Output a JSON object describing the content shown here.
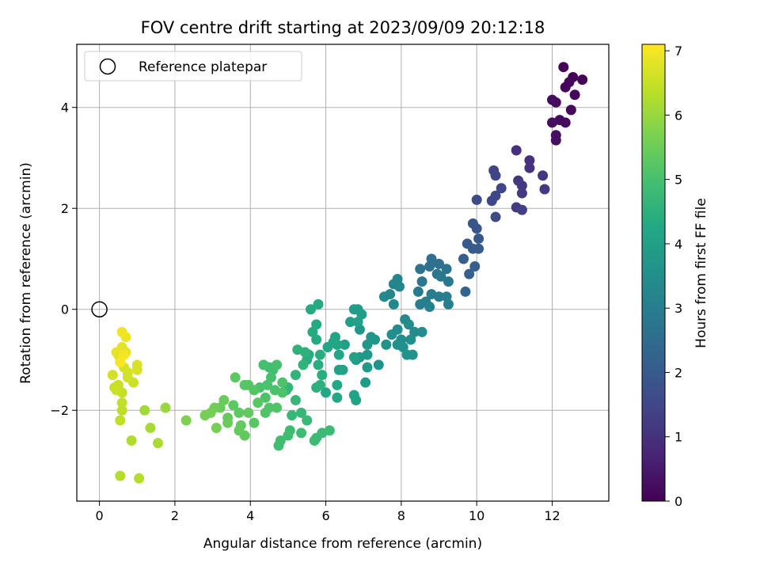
{
  "chart_data": {
    "type": "scatter",
    "title": "FOV centre drift starting at 2023/09/09 20:12:18",
    "xlabel": "Angular distance from reference (arcmin)",
    "ylabel": "Rotation from reference (arcmin)",
    "xlim": [
      -0.6,
      13.5
    ],
    "ylim": [
      -3.8,
      5.25
    ],
    "xticks": [
      0,
      2,
      4,
      6,
      8,
      10,
      12
    ],
    "yticks": [
      -2,
      0,
      2,
      4
    ],
    "grid": true,
    "legend": {
      "position": "top-left",
      "entries": [
        "Reference platepar"
      ]
    },
    "reference_point": {
      "x": 0,
      "y": 0
    },
    "colorbar": {
      "label": "Hours from first FF file",
      "range": [
        0,
        7.1
      ],
      "ticks": [
        0,
        1,
        2,
        3,
        4,
        5,
        6,
        7
      ],
      "colormap": "viridis"
    },
    "points": [
      [
        12.3,
        4.8,
        0.05
      ],
      [
        12.55,
        4.6,
        0.05
      ],
      [
        12.8,
        4.55,
        0.05
      ],
      [
        12.45,
        4.5,
        0.1
      ],
      [
        12.35,
        4.4,
        0.1
      ],
      [
        12.6,
        4.25,
        0.12
      ],
      [
        12.5,
        3.95,
        0.15
      ],
      [
        12.2,
        3.75,
        0.2
      ],
      [
        12.35,
        3.7,
        0.2
      ],
      [
        12.0,
        4.15,
        0.2
      ],
      [
        12.1,
        4.1,
        0.22
      ],
      [
        12.0,
        3.7,
        0.25
      ],
      [
        12.1,
        3.45,
        0.3
      ],
      [
        12.1,
        3.35,
        0.3
      ],
      [
        11.05,
        3.15,
        1.0
      ],
      [
        11.4,
        2.95,
        1.0
      ],
      [
        11.4,
        2.8,
        1.05
      ],
      [
        11.75,
        2.65,
        1.1
      ],
      [
        11.1,
        2.55,
        1.1
      ],
      [
        11.2,
        2.45,
        1.15
      ],
      [
        11.2,
        2.3,
        1.2
      ],
      [
        11.8,
        2.38,
        1.2
      ],
      [
        11.05,
        2.02,
        1.25
      ],
      [
        11.2,
        1.97,
        1.3
      ],
      [
        10.45,
        2.75,
        1.4
      ],
      [
        10.5,
        2.65,
        1.45
      ],
      [
        10.5,
        2.25,
        1.5
      ],
      [
        10.4,
        2.15,
        1.5
      ],
      [
        10.65,
        2.4,
        1.5
      ],
      [
        10.0,
        2.17,
        1.6
      ],
      [
        10.5,
        1.83,
        1.6
      ],
      [
        9.9,
        1.7,
        1.9
      ],
      [
        10.0,
        1.6,
        1.9
      ],
      [
        10.05,
        1.4,
        1.95
      ],
      [
        9.75,
        1.3,
        2.0
      ],
      [
        9.9,
        1.2,
        2.0
      ],
      [
        10.05,
        1.2,
        2.05
      ],
      [
        9.65,
        1.0,
        2.1
      ],
      [
        9.95,
        0.85,
        2.15
      ],
      [
        9.8,
        0.7,
        2.2
      ],
      [
        9.7,
        0.35,
        2.3
      ],
      [
        8.8,
        1.0,
        2.6
      ],
      [
        9.0,
        0.9,
        2.6
      ],
      [
        8.75,
        0.85,
        2.65
      ],
      [
        9.2,
        0.8,
        2.7
      ],
      [
        8.5,
        0.8,
        2.7
      ],
      [
        8.95,
        0.7,
        2.75
      ],
      [
        9.05,
        0.65,
        2.8
      ],
      [
        9.25,
        0.55,
        2.85
      ],
      [
        8.55,
        0.55,
        2.85
      ],
      [
        8.45,
        0.35,
        2.9
      ],
      [
        8.8,
        0.3,
        2.95
      ],
      [
        9.0,
        0.25,
        2.95
      ],
      [
        9.2,
        0.25,
        3.0
      ],
      [
        8.5,
        0.1,
        3.0
      ],
      [
        9.25,
        0.1,
        3.05
      ],
      [
        8.65,
        0.15,
        3.05
      ],
      [
        8.75,
        0.05,
        3.1
      ],
      [
        7.9,
        0.6,
        3.2
      ],
      [
        7.8,
        0.5,
        3.2
      ],
      [
        7.95,
        0.45,
        3.25
      ],
      [
        7.7,
        0.3,
        3.25
      ],
      [
        7.55,
        0.25,
        3.3
      ],
      [
        7.8,
        0.1,
        3.3
      ],
      [
        8.1,
        -0.2,
        3.35
      ],
      [
        8.2,
        -0.3,
        3.4
      ],
      [
        8.35,
        -0.45,
        3.4
      ],
      [
        7.9,
        -0.4,
        3.45
      ],
      [
        8.55,
        -0.45,
        3.45
      ],
      [
        8.25,
        -0.6,
        3.5
      ],
      [
        7.75,
        -0.5,
        3.5
      ],
      [
        8.0,
        -0.6,
        3.5
      ],
      [
        8.05,
        -0.75,
        3.55
      ],
      [
        7.9,
        -0.7,
        3.55
      ],
      [
        7.6,
        -0.7,
        3.6
      ],
      [
        7.4,
        -1.1,
        3.6
      ],
      [
        8.15,
        -0.9,
        3.6
      ],
      [
        8.3,
        -0.9,
        3.6
      ],
      [
        7.2,
        -0.55,
        3.7
      ],
      [
        6.9,
        -0.4,
        3.7
      ],
      [
        7.1,
        -0.7,
        3.75
      ],
      [
        7.3,
        -0.6,
        3.75
      ],
      [
        7.1,
        -0.9,
        3.75
      ],
      [
        6.9,
        -0.95,
        3.8
      ],
      [
        7.1,
        -1.15,
        3.8
      ],
      [
        6.8,
        -1.0,
        3.85
      ],
      [
        7.05,
        -1.45,
        3.85
      ],
      [
        6.75,
        0.0,
        3.9
      ],
      [
        6.85,
        0.0,
        3.9
      ],
      [
        6.95,
        -0.1,
        3.95
      ],
      [
        6.65,
        -0.25,
        3.95
      ],
      [
        6.85,
        -0.25,
        4.0
      ],
      [
        6.5,
        -0.7,
        4.0
      ],
      [
        6.75,
        -0.95,
        4.05
      ],
      [
        6.35,
        -1.2,
        4.05
      ],
      [
        6.75,
        -1.7,
        4.1
      ],
      [
        6.8,
        -1.8,
        4.1
      ],
      [
        6.45,
        -1.2,
        4.1
      ],
      [
        6.25,
        -0.55,
        4.15
      ],
      [
        6.3,
        -0.7,
        4.15
      ],
      [
        6.35,
        -0.9,
        4.2
      ],
      [
        6.2,
        -0.65,
        4.2
      ],
      [
        6.05,
        -0.75,
        4.2
      ],
      [
        6.3,
        -1.5,
        4.25
      ],
      [
        6.0,
        -1.65,
        4.25
      ],
      [
        6.3,
        -1.75,
        4.25
      ],
      [
        5.8,
        0.1,
        4.3
      ],
      [
        5.6,
        0.0,
        4.3
      ],
      [
        5.75,
        -0.3,
        4.3
      ],
      [
        5.65,
        -0.45,
        4.35
      ],
      [
        5.75,
        -0.6,
        4.35
      ],
      [
        5.85,
        -0.9,
        4.4
      ],
      [
        5.55,
        -0.9,
        4.4
      ],
      [
        5.5,
        -1.0,
        4.4
      ],
      [
        5.8,
        -1.1,
        4.45
      ],
      [
        5.9,
        -1.3,
        4.45
      ],
      [
        5.75,
        -1.55,
        4.5
      ],
      [
        5.85,
        -1.5,
        4.5
      ],
      [
        5.25,
        -0.8,
        4.55
      ],
      [
        5.45,
        -0.85,
        4.55
      ],
      [
        5.2,
        -1.3,
        4.6
      ],
      [
        5.4,
        -1.1,
        4.6
      ],
      [
        4.95,
        -1.6,
        4.65
      ],
      [
        5.0,
        -1.55,
        4.65
      ],
      [
        5.2,
        -1.8,
        4.7
      ],
      [
        5.35,
        -2.05,
        4.7
      ],
      [
        5.5,
        -2.2,
        4.75
      ],
      [
        5.1,
        -2.1,
        4.7
      ],
      [
        6.1,
        -2.4,
        4.8
      ],
      [
        5.9,
        -2.45,
        4.8
      ],
      [
        5.75,
        -2.55,
        4.8
      ],
      [
        5.7,
        -2.6,
        4.85
      ],
      [
        5.35,
        -2.45,
        4.85
      ],
      [
        5.05,
        -2.4,
        4.85
      ],
      [
        5.0,
        -2.5,
        4.9
      ],
      [
        4.8,
        -2.6,
        4.9
      ],
      [
        4.75,
        -2.7,
        4.9
      ],
      [
        4.6,
        -1.2,
        4.95
      ],
      [
        4.5,
        -1.15,
        4.95
      ],
      [
        4.7,
        -1.1,
        5.0
      ],
      [
        4.35,
        -1.1,
        5.0
      ],
      [
        4.55,
        -1.35,
        5.0
      ],
      [
        4.45,
        -1.5,
        5.05
      ],
      [
        4.25,
        -1.55,
        5.05
      ],
      [
        4.65,
        -1.6,
        5.05
      ],
      [
        4.4,
        -1.75,
        5.1
      ],
      [
        4.85,
        -1.45,
        5.1
      ],
      [
        4.85,
        -1.65,
        5.1
      ],
      [
        4.7,
        -1.95,
        5.15
      ],
      [
        4.5,
        -1.95,
        5.15
      ],
      [
        4.4,
        -2.05,
        5.15
      ],
      [
        3.95,
        -1.5,
        5.2
      ],
      [
        3.85,
        -1.5,
        5.2
      ],
      [
        4.1,
        -1.6,
        5.2
      ],
      [
        4.2,
        -1.85,
        5.25
      ],
      [
        4.1,
        -2.25,
        5.25
      ],
      [
        3.6,
        -1.35,
        5.3
      ],
      [
        3.55,
        -1.9,
        5.3
      ],
      [
        3.7,
        -2.05,
        5.3
      ],
      [
        3.95,
        -2.05,
        5.35
      ],
      [
        3.75,
        -2.3,
        5.35
      ],
      [
        3.85,
        -2.5,
        5.35
      ],
      [
        3.7,
        -2.4,
        5.4
      ],
      [
        3.4,
        -2.15,
        5.4
      ],
      [
        3.4,
        -2.25,
        5.45
      ],
      [
        3.3,
        -1.8,
        5.45
      ],
      [
        3.2,
        -1.95,
        5.45
      ],
      [
        3.05,
        -1.95,
        5.55
      ],
      [
        2.95,
        -2.05,
        5.6
      ],
      [
        2.8,
        -2.1,
        5.6
      ],
      [
        3.1,
        -2.35,
        5.6
      ],
      [
        2.3,
        -2.2,
        5.7
      ],
      [
        1.75,
        -1.95,
        6.0
      ],
      [
        1.2,
        -2.0,
        6.1
      ],
      [
        1.35,
        -2.35,
        6.15
      ],
      [
        1.55,
        -2.65,
        6.2
      ],
      [
        0.85,
        -2.6,
        6.25
      ],
      [
        1.05,
        -3.35,
        6.3
      ],
      [
        0.55,
        -3.3,
        6.3
      ],
      [
        0.55,
        -2.2,
        6.4
      ],
      [
        0.6,
        -2.0,
        6.4
      ],
      [
        0.6,
        -1.85,
        6.45
      ],
      [
        0.6,
        -1.65,
        6.45
      ],
      [
        0.5,
        -1.5,
        6.5
      ],
      [
        0.4,
        -1.55,
        6.5
      ],
      [
        0.45,
        -1.6,
        6.55
      ],
      [
        0.9,
        -1.45,
        6.55
      ],
      [
        0.75,
        -1.35,
        6.6
      ],
      [
        0.35,
        -1.3,
        6.6
      ],
      [
        0.75,
        -1.25,
        6.65
      ],
      [
        0.65,
        -1.15,
        6.65
      ],
      [
        1.0,
        -1.2,
        6.7
      ],
      [
        1.0,
        -1.1,
        6.7
      ],
      [
        0.55,
        -1.0,
        6.75
      ],
      [
        0.5,
        -0.9,
        6.75
      ],
      [
        0.7,
        -0.85,
        6.8
      ],
      [
        0.6,
        -0.75,
        6.8
      ],
      [
        0.45,
        -0.85,
        6.85
      ],
      [
        0.7,
        -0.55,
        6.9
      ],
      [
        0.6,
        -0.45,
        6.95
      ],
      [
        0.65,
        -0.9,
        7.0
      ],
      [
        0.55,
        -1.05,
        7.05
      ]
    ]
  }
}
